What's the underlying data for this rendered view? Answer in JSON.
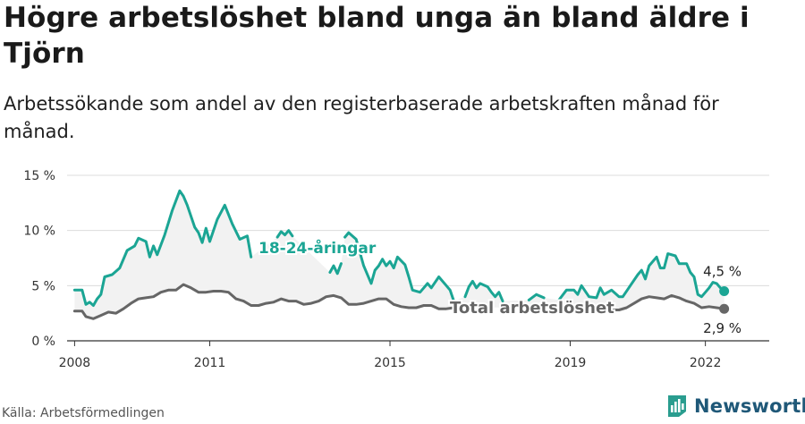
{
  "header": {
    "title": "Högre arbetslöshet bland unga än bland äldre i Tjörn",
    "subtitle": "Arbetssökande som andel av den registerbaserade arbetskraften månad för månad."
  },
  "footer": {
    "source": "Källa: Arbetsförmedlingen",
    "brand": "Newsworthy"
  },
  "chart_data": {
    "type": "line",
    "title": "Högre arbetslöshet bland unga än bland äldre i Tjörn",
    "subtitle": "Arbetssökande som andel av den registerbaserade arbetskraften månad för månad.",
    "ylim": [
      0,
      15
    ],
    "yticks": [
      0,
      5,
      10,
      15
    ],
    "ytick_labels": [
      "0 %",
      "5 %",
      "10 %",
      "15 %"
    ],
    "xlim": [
      "2007-11",
      "2023-06"
    ],
    "xticks": [
      "2008",
      "2011",
      "2015",
      "2019",
      "2022"
    ],
    "grid": "horizontal",
    "series": [
      {
        "name": "18-24-åringar",
        "color": "#1ba594",
        "end_label": "4,5 %",
        "points": [
          [
            "2008-01",
            4.6
          ],
          [
            "2008-03",
            4.6
          ],
          [
            "2008-04",
            3.3
          ],
          [
            "2008-05",
            3.5
          ],
          [
            "2008-06",
            3.2
          ],
          [
            "2008-07",
            3.8
          ],
          [
            "2008-08",
            4.2
          ],
          [
            "2008-09",
            5.8
          ],
          [
            "2008-11",
            6.0
          ],
          [
            "2009-01",
            6.6
          ],
          [
            "2009-03",
            8.2
          ],
          [
            "2009-05",
            8.6
          ],
          [
            "2009-06",
            9.3
          ],
          [
            "2009-08",
            9.0
          ],
          [
            "2009-09",
            7.6
          ],
          [
            "2009-10",
            8.6
          ],
          [
            "2009-11",
            7.8
          ],
          [
            "2010-01",
            9.6
          ],
          [
            "2010-03",
            11.8
          ],
          [
            "2010-05",
            13.6
          ],
          [
            "2010-06",
            13.1
          ],
          [
            "2010-07",
            12.3
          ],
          [
            "2010-09",
            10.3
          ],
          [
            "2010-10",
            9.8
          ],
          [
            "2010-11",
            8.9
          ],
          [
            "2010-12",
            10.2
          ],
          [
            "2011-01",
            9.0
          ],
          [
            "2011-03",
            11.0
          ],
          [
            "2011-05",
            12.3
          ],
          [
            "2011-07",
            10.6
          ],
          [
            "2011-09",
            9.2
          ],
          [
            "2011-11",
            9.5
          ],
          [
            "2011-12",
            7.6
          ],
          null,
          [
            "2012-07",
            9.4
          ],
          [
            "2012-08",
            9.9
          ],
          [
            "2012-09",
            9.6
          ],
          [
            "2012-10",
            10.0
          ],
          [
            "2012-11",
            9.5
          ],
          null,
          [
            "2013-09",
            6.2
          ],
          [
            "2013-10",
            6.8
          ],
          [
            "2013-11",
            6.1
          ],
          [
            "2013-12",
            7.0
          ],
          null,
          [
            "2014-01",
            9.4
          ],
          [
            "2014-02",
            9.8
          ],
          [
            "2014-04",
            9.2
          ],
          [
            "2014-05",
            8.0
          ],
          [
            "2014-06",
            6.8
          ],
          [
            "2014-08",
            5.2
          ],
          [
            "2014-09",
            6.4
          ],
          [
            "2014-10",
            6.8
          ],
          [
            "2014-11",
            7.4
          ],
          [
            "2014-12",
            6.8
          ],
          [
            "2015-01",
            7.2
          ],
          [
            "2015-02",
            6.6
          ],
          [
            "2015-03",
            7.6
          ],
          [
            "2015-05",
            6.9
          ],
          [
            "2015-06",
            5.8
          ],
          [
            "2015-07",
            4.6
          ],
          [
            "2015-09",
            4.4
          ],
          [
            "2015-10",
            4.8
          ],
          [
            "2015-11",
            5.2
          ],
          [
            "2015-12",
            4.8
          ],
          [
            "2016-02",
            5.8
          ],
          [
            "2016-04",
            5.0
          ],
          [
            "2016-05",
            4.6
          ],
          [
            "2016-06",
            3.6
          ],
          null,
          [
            "2016-09",
            4.0
          ],
          [
            "2016-10",
            4.9
          ],
          [
            "2016-11",
            5.4
          ],
          [
            "2016-12",
            4.8
          ],
          [
            "2017-01",
            5.2
          ],
          [
            "2017-03",
            4.9
          ],
          [
            "2017-04",
            4.4
          ],
          [
            "2017-05",
            4.0
          ],
          [
            "2017-06",
            4.4
          ],
          [
            "2017-07",
            3.6
          ],
          null,
          [
            "2018-02",
            3.7
          ],
          [
            "2018-04",
            4.2
          ],
          [
            "2018-06",
            3.9
          ],
          null,
          [
            "2018-10",
            3.7
          ],
          [
            "2018-12",
            4.6
          ],
          [
            "2019-02",
            4.6
          ],
          [
            "2019-03",
            4.2
          ],
          [
            "2019-04",
            5.0
          ],
          [
            "2019-06",
            4.0
          ],
          [
            "2019-08",
            3.9
          ],
          [
            "2019-09",
            4.8
          ],
          [
            "2019-10",
            4.2
          ],
          [
            "2019-12",
            4.6
          ],
          [
            "2020-02",
            4.0
          ],
          [
            "2020-03",
            4.0
          ],
          [
            "2020-05",
            5.0
          ],
          [
            "2020-07",
            6.0
          ],
          [
            "2020-08",
            6.4
          ],
          [
            "2020-09",
            5.6
          ],
          [
            "2020-10",
            6.8
          ],
          [
            "2020-12",
            7.6
          ],
          [
            "2021-01",
            6.6
          ],
          [
            "2021-02",
            6.6
          ],
          [
            "2021-03",
            7.9
          ],
          [
            "2021-05",
            7.7
          ],
          [
            "2021-06",
            7.0
          ],
          [
            "2021-08",
            7.0
          ],
          [
            "2021-09",
            6.2
          ],
          [
            "2021-10",
            5.8
          ],
          [
            "2021-11",
            4.2
          ],
          [
            "2021-12",
            4.0
          ],
          [
            "2022-02",
            4.8
          ],
          [
            "2022-03",
            5.3
          ],
          [
            "2022-04",
            5.2
          ],
          [
            "2022-05",
            4.8
          ],
          [
            "2022-06",
            4.5
          ]
        ],
        "inline_label": "18-24-åringar"
      },
      {
        "name": "Total arbetslöshet",
        "color": "#666666",
        "end_label": "2,9 %",
        "points": [
          [
            "2008-01",
            2.7
          ],
          [
            "2008-03",
            2.7
          ],
          [
            "2008-04",
            2.2
          ],
          [
            "2008-06",
            2.0
          ],
          [
            "2008-08",
            2.3
          ],
          [
            "2008-10",
            2.6
          ],
          [
            "2008-12",
            2.5
          ],
          [
            "2009-02",
            2.9
          ],
          [
            "2009-04",
            3.4
          ],
          [
            "2009-06",
            3.8
          ],
          [
            "2009-08",
            3.9
          ],
          [
            "2009-10",
            4.0
          ],
          [
            "2009-12",
            4.4
          ],
          [
            "2010-02",
            4.6
          ],
          [
            "2010-04",
            4.6
          ],
          [
            "2010-06",
            5.1
          ],
          [
            "2010-08",
            4.8
          ],
          [
            "2010-10",
            4.4
          ],
          [
            "2010-12",
            4.4
          ],
          [
            "2011-02",
            4.5
          ],
          [
            "2011-04",
            4.5
          ],
          [
            "2011-06",
            4.4
          ],
          [
            "2011-08",
            3.8
          ],
          [
            "2011-10",
            3.6
          ],
          [
            "2011-12",
            3.2
          ],
          [
            "2012-02",
            3.2
          ],
          [
            "2012-04",
            3.4
          ],
          [
            "2012-06",
            3.5
          ],
          [
            "2012-08",
            3.8
          ],
          [
            "2012-10",
            3.6
          ],
          [
            "2012-12",
            3.6
          ],
          [
            "2013-02",
            3.3
          ],
          [
            "2013-04",
            3.4
          ],
          [
            "2013-06",
            3.6
          ],
          [
            "2013-08",
            4.0
          ],
          [
            "2013-10",
            4.1
          ],
          [
            "2013-12",
            3.9
          ],
          [
            "2014-02",
            3.3
          ],
          [
            "2014-04",
            3.3
          ],
          [
            "2014-06",
            3.4
          ],
          [
            "2014-08",
            3.6
          ],
          [
            "2014-10",
            3.8
          ],
          [
            "2014-12",
            3.8
          ],
          [
            "2015-02",
            3.3
          ],
          [
            "2015-04",
            3.1
          ],
          [
            "2015-06",
            3.0
          ],
          [
            "2015-08",
            3.0
          ],
          [
            "2015-10",
            3.2
          ],
          [
            "2015-12",
            3.2
          ],
          [
            "2016-02",
            2.9
          ],
          [
            "2016-04",
            2.9
          ],
          [
            "2016-06",
            3.0
          ],
          [
            "2016-08",
            3.1
          ],
          null,
          [
            "2019-08",
            2.8
          ],
          [
            "2019-10",
            2.9
          ],
          [
            "2019-12",
            2.8
          ],
          [
            "2020-02",
            2.8
          ],
          [
            "2020-04",
            3.0
          ],
          [
            "2020-06",
            3.4
          ],
          [
            "2020-08",
            3.8
          ],
          [
            "2020-10",
            4.0
          ],
          [
            "2020-12",
            3.9
          ],
          [
            "2021-02",
            3.8
          ],
          [
            "2021-04",
            4.1
          ],
          [
            "2021-06",
            3.9
          ],
          [
            "2021-08",
            3.6
          ],
          [
            "2021-10",
            3.4
          ],
          [
            "2021-12",
            3.0
          ],
          [
            "2022-02",
            3.1
          ],
          [
            "2022-04",
            3.0
          ],
          [
            "2022-06",
            2.9
          ]
        ],
        "inline_label": "Total arbetslöshet"
      }
    ]
  }
}
